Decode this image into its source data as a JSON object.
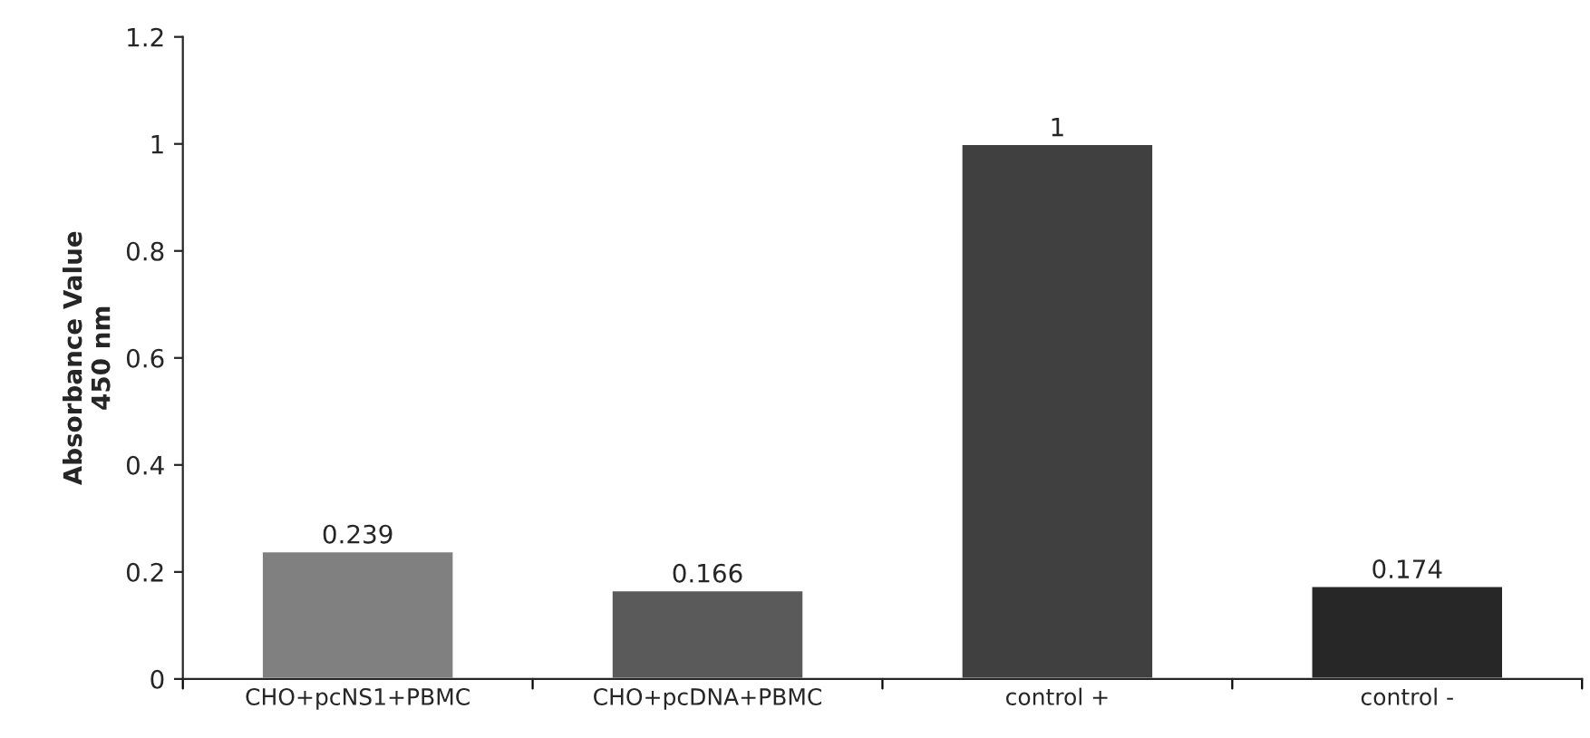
{
  "chart_data": {
    "type": "bar",
    "ylabel": "Absorbance Value\n450 nm",
    "categories": [
      "CHO+pcNS1+PBMC",
      "CHO+pcDNA+PBMC",
      "control +",
      "control -"
    ],
    "values": [
      0.239,
      0.166,
      1,
      0.174
    ],
    "colors": [
      "#808080",
      "#5a5a5a",
      "#404040",
      "#272727"
    ],
    "ylim": [
      0,
      1.2
    ],
    "yticks": [
      0,
      0.2,
      0.4,
      0.6,
      0.8,
      1,
      1.2
    ],
    "data_labels": true,
    "grid": false,
    "legend": false
  }
}
